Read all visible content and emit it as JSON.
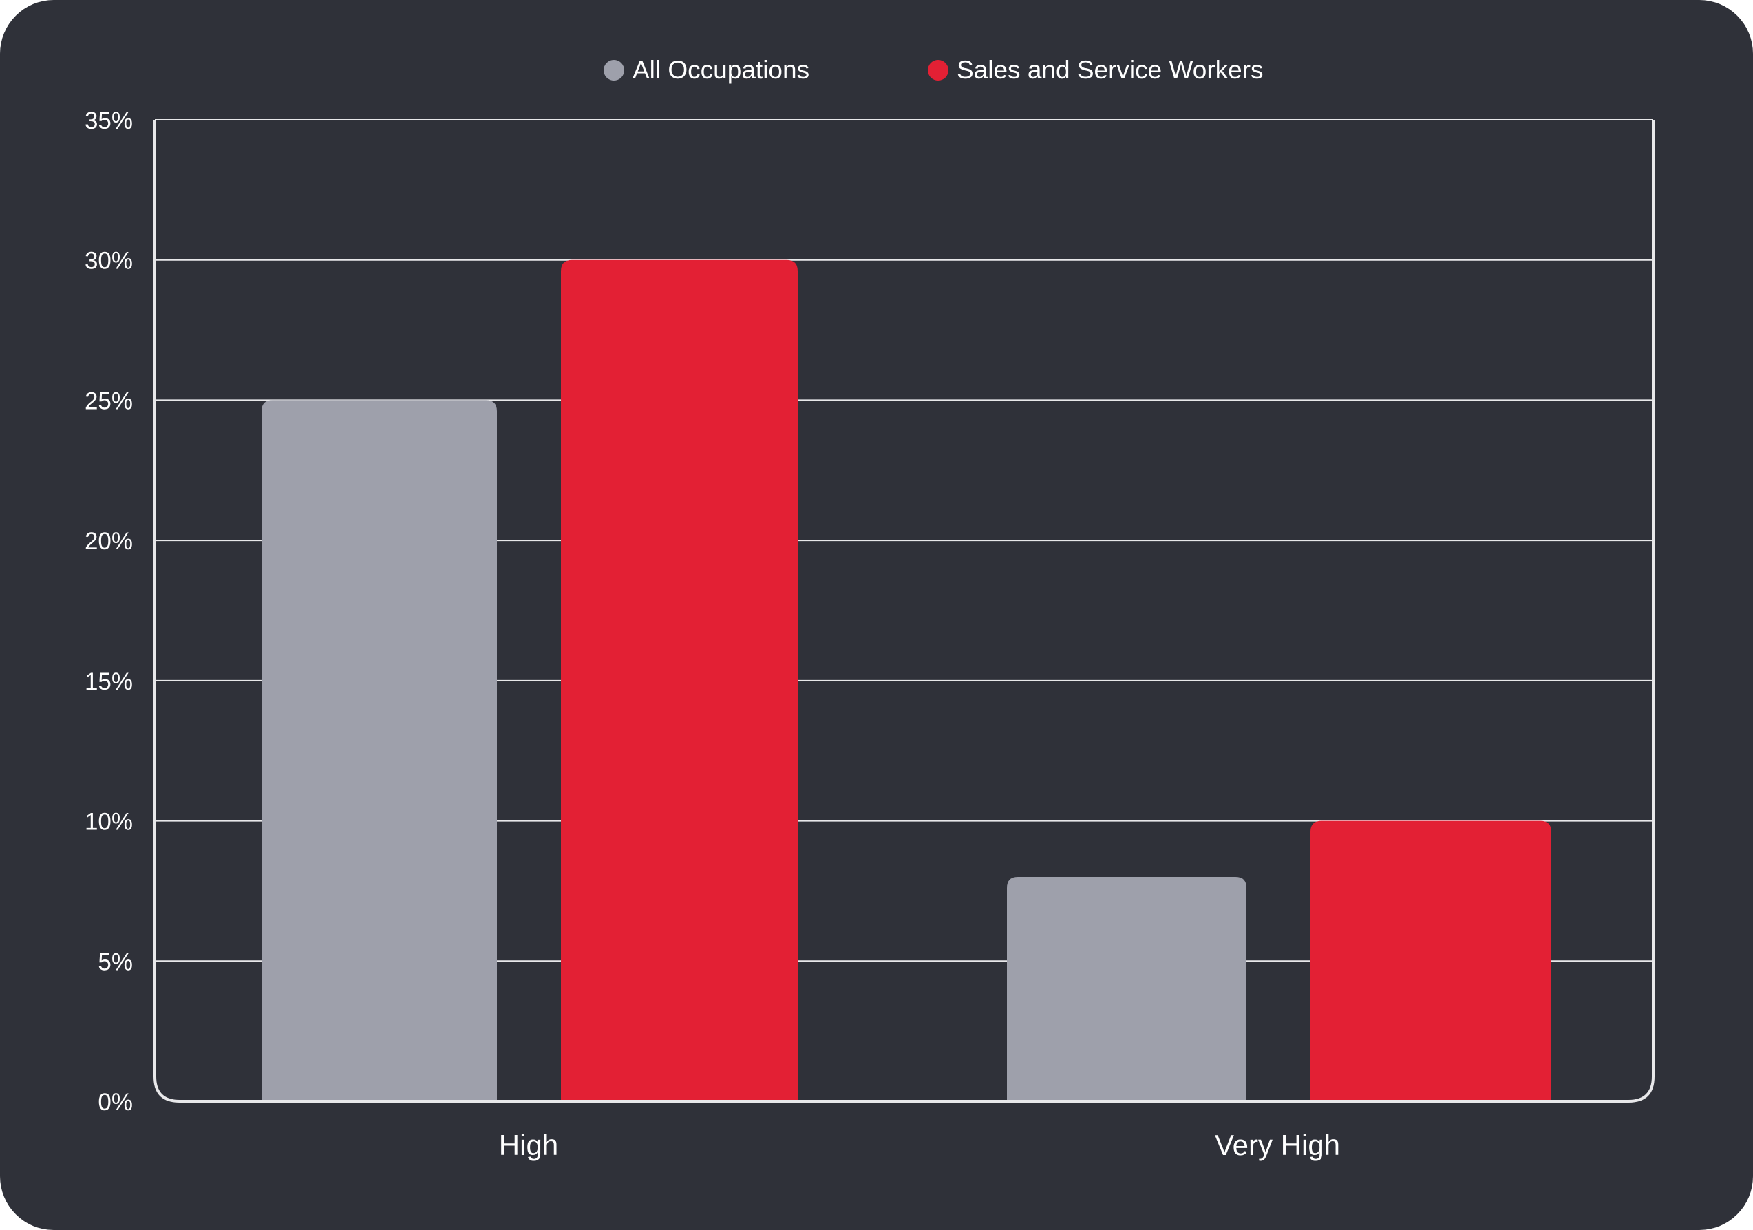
{
  "chart_data": {
    "type": "bar",
    "categories": [
      "High",
      "Very High"
    ],
    "series": [
      {
        "name": "All Occupations",
        "color": "#9ea0ab",
        "values": [
          25,
          8
        ]
      },
      {
        "name": "Sales and Service Workers",
        "color": "#e32034",
        "values": [
          30,
          10
        ]
      }
    ],
    "y_ticks": [
      "0%",
      "5%",
      "10%",
      "15%",
      "20%",
      "25%",
      "30%",
      "35%"
    ],
    "ylim": [
      0,
      35
    ],
    "grid": true,
    "legend_position": "top-center",
    "title": "",
    "xlabel": "",
    "ylabel": ""
  },
  "colors": {
    "background": "#2f3139",
    "gridline": "#e8e8ea",
    "text": "#ffffff"
  }
}
